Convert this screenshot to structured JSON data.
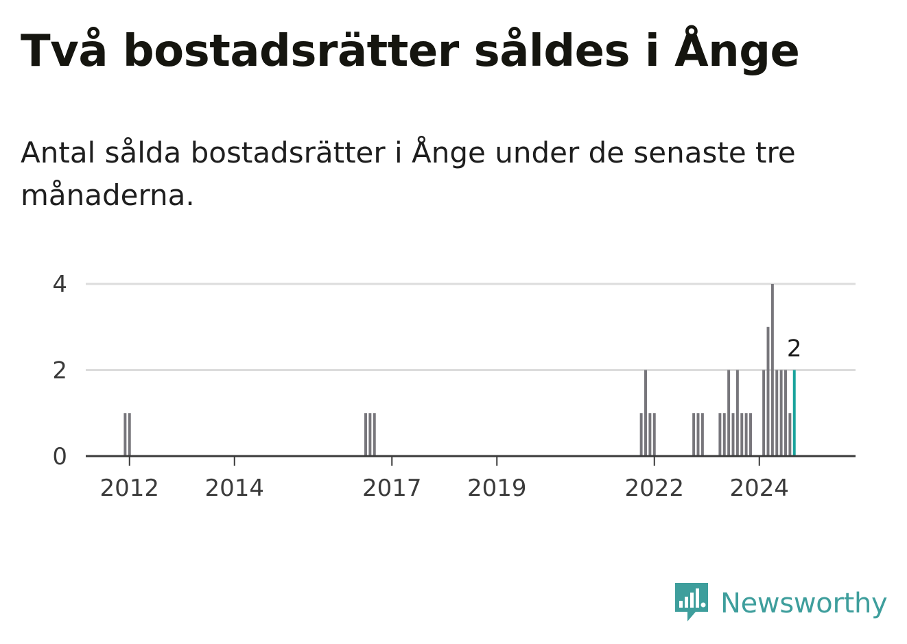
{
  "title": "Två bostadsrätter såldes i Ånge",
  "subtitle": "Antal sålda bostadsrätter i Ånge under de senaste tre månaderna.",
  "brand": {
    "name": "Newsworthy",
    "logo_icon": "newsworthy-chart-bubble-icon",
    "color": "#3e9e9c"
  },
  "chart_data": {
    "type": "bar",
    "title": "Två bostadsrätter såldes i Ånge",
    "xlabel": "",
    "ylabel": "",
    "ylim": [
      0,
      4
    ],
    "yticks": [
      0,
      2,
      4
    ],
    "xticks": [
      {
        "label": "2012",
        "date": "2012-01"
      },
      {
        "label": "2014",
        "date": "2014-01"
      },
      {
        "label": "2017",
        "date": "2017-01"
      },
      {
        "label": "2019",
        "date": "2019-01"
      },
      {
        "label": "2022",
        "date": "2022-01"
      },
      {
        "label": "2024",
        "date": "2024-01"
      }
    ],
    "xrange": [
      "2011-03",
      "2025-11"
    ],
    "bar_color": "#77767b",
    "highlight_color": "#1aa39c",
    "grid": true,
    "highlight_label": "2",
    "points": [
      {
        "date": "2011-12",
        "value": 1
      },
      {
        "date": "2012-01",
        "value": 1
      },
      {
        "date": "2016-07",
        "value": 1
      },
      {
        "date": "2016-08",
        "value": 1
      },
      {
        "date": "2016-09",
        "value": 1
      },
      {
        "date": "2021-10",
        "value": 1
      },
      {
        "date": "2021-11",
        "value": 2
      },
      {
        "date": "2021-12",
        "value": 1
      },
      {
        "date": "2022-01",
        "value": 1
      },
      {
        "date": "2022-10",
        "value": 1
      },
      {
        "date": "2022-11",
        "value": 1
      },
      {
        "date": "2022-12",
        "value": 1
      },
      {
        "date": "2023-04",
        "value": 1
      },
      {
        "date": "2023-05",
        "value": 1
      },
      {
        "date": "2023-06",
        "value": 2
      },
      {
        "date": "2023-07",
        "value": 1
      },
      {
        "date": "2023-08",
        "value": 2
      },
      {
        "date": "2023-09",
        "value": 1
      },
      {
        "date": "2023-10",
        "value": 1
      },
      {
        "date": "2023-11",
        "value": 1
      },
      {
        "date": "2024-02",
        "value": 2
      },
      {
        "date": "2024-03",
        "value": 3
      },
      {
        "date": "2024-04",
        "value": 4
      },
      {
        "date": "2024-05",
        "value": 2
      },
      {
        "date": "2024-06",
        "value": 2
      },
      {
        "date": "2024-07",
        "value": 2
      },
      {
        "date": "2024-08",
        "value": 1
      },
      {
        "date": "2024-09",
        "value": 2,
        "highlight": true
      }
    ]
  }
}
